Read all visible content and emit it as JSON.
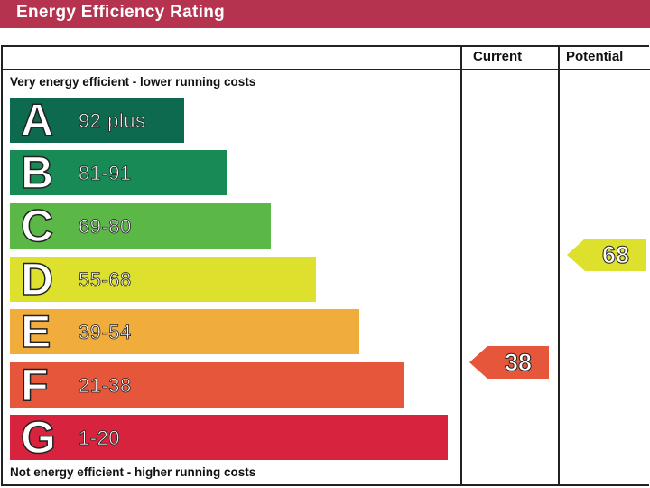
{
  "header": {
    "title": "Energy Efficiency Rating"
  },
  "columns": {
    "current": "Current",
    "potential": "Potential"
  },
  "captions": {
    "top": "Very energy efficient - lower running costs",
    "bottom": "Not energy efficient - higher running costs"
  },
  "chart_data": {
    "type": "bar",
    "title": "Energy Efficiency Rating",
    "categories": [
      "A",
      "B",
      "C",
      "D",
      "E",
      "F",
      "G"
    ],
    "ranges": [
      "92 plus",
      "81-91",
      "69-80",
      "55-68",
      "39-54",
      "21-38",
      "1-20"
    ],
    "colors": [
      "#0e6a4f",
      "#178a55",
      "#5cb846",
      "#dde02c",
      "#f0ad3c",
      "#e5563b",
      "#d8233f"
    ],
    "current": {
      "label": "Current",
      "value": "38",
      "band": "F",
      "color": "#e5563b"
    },
    "potential": {
      "label": "Potential",
      "value": "68",
      "band": "D",
      "color": "#dde02c"
    }
  }
}
